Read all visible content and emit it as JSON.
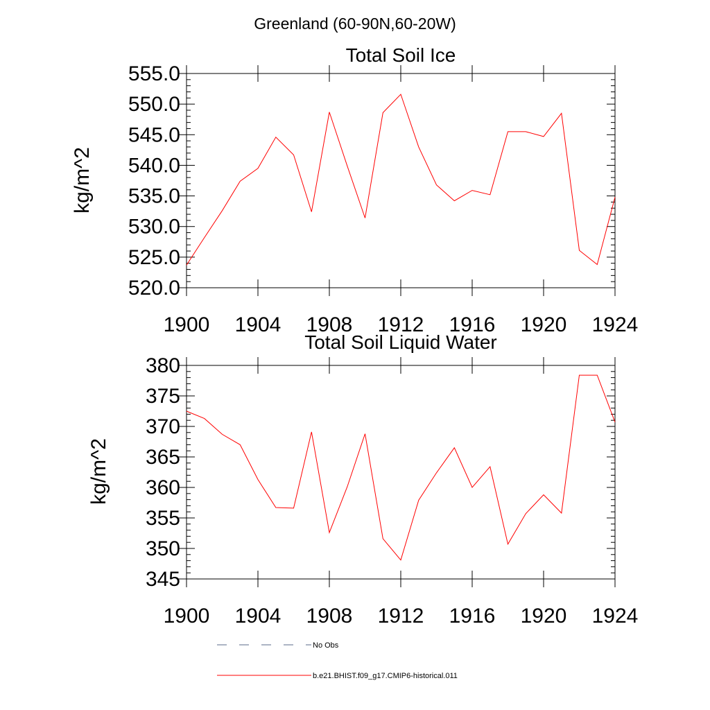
{
  "figure": {
    "title": "Greenland (60-90N,60-20W)"
  },
  "chart_data": [
    {
      "type": "line",
      "title": "Total Soil Ice",
      "xlabel": "",
      "ylabel": "kg/m^2",
      "xlim": [
        1900,
        1924
      ],
      "ylim": [
        520,
        555
      ],
      "xticks": [
        1900,
        1904,
        1908,
        1912,
        1916,
        1920,
        1924
      ],
      "xtick_labels": [
        "1900",
        "1904",
        "1908",
        "1912",
        "1916",
        "1920",
        "1924"
      ],
      "yticks": [
        520,
        525,
        530,
        535,
        540,
        545,
        550,
        555
      ],
      "ytick_labels": [
        "520.0",
        "525.0",
        "530.0",
        "535.0",
        "540.0",
        "545.0",
        "550.0",
        "555.0"
      ],
      "grid": false,
      "series": [
        {
          "name": "b.e21.BHIST.f09_g17.CMIP6-historical.011",
          "color": "#ff0000",
          "x": [
            1900,
            1901,
            1902,
            1903,
            1904,
            1905,
            1906,
            1907,
            1908,
            1909,
            1910,
            1911,
            1912,
            1913,
            1914,
            1915,
            1916,
            1917,
            1918,
            1919,
            1920,
            1921,
            1922,
            1923,
            1924
          ],
          "y": [
            523.7,
            528.2,
            532.6,
            537.4,
            539.5,
            544.6,
            541.7,
            532.4,
            548.7,
            539.9,
            531.4,
            548.6,
            551.6,
            543.0,
            536.8,
            534.2,
            535.9,
            535.2,
            545.5,
            545.5,
            544.7,
            548.5,
            526.1,
            523.8,
            534.8
          ]
        }
      ]
    },
    {
      "type": "line",
      "title": "Total Soil Liquid Water",
      "xlabel": "",
      "ylabel": "kg/m^2",
      "xlim": [
        1900,
        1924
      ],
      "ylim": [
        345,
        380
      ],
      "xticks": [
        1900,
        1904,
        1908,
        1912,
        1916,
        1920,
        1924
      ],
      "xtick_labels": [
        "1900",
        "1904",
        "1908",
        "1912",
        "1916",
        "1920",
        "1924"
      ],
      "yticks": [
        345,
        350,
        355,
        360,
        365,
        370,
        375,
        380
      ],
      "ytick_labels": [
        "345",
        "350",
        "355",
        "360",
        "365",
        "370",
        "375",
        "380"
      ],
      "grid": false,
      "series": [
        {
          "name": "b.e21.BHIST.f09_g17.CMIP6-historical.011",
          "color": "#ff0000",
          "x": [
            1900,
            1901,
            1902,
            1903,
            1904,
            1905,
            1906,
            1907,
            1908,
            1909,
            1910,
            1911,
            1912,
            1913,
            1914,
            1915,
            1916,
            1917,
            1918,
            1919,
            1920,
            1921,
            1922,
            1923,
            1924
          ],
          "y": [
            372.5,
            371.3,
            368.7,
            367.0,
            361.3,
            356.7,
            356.6,
            369.1,
            352.6,
            360.1,
            368.8,
            351.6,
            348.1,
            357.9,
            362.4,
            366.5,
            360.0,
            363.4,
            350.7,
            355.7,
            358.8,
            355.8,
            378.4,
            378.4,
            370.7
          ]
        }
      ]
    }
  ],
  "legend": {
    "placement": "bottom",
    "items": [
      {
        "label": "No Obs",
        "style": "dashed",
        "color": "#5a6a8a"
      },
      {
        "label": "b.e21.BHIST.f09_g17.CMIP6-historical.011",
        "style": "solid",
        "color": "#ff0000"
      }
    ]
  }
}
